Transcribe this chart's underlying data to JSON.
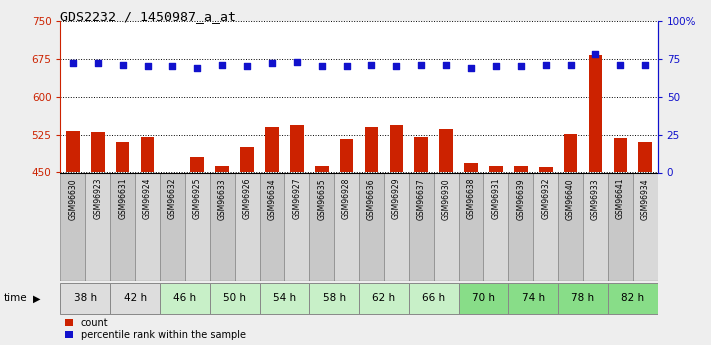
{
  "title": "GDS2232 / 1450987_a_at",
  "samples": [
    "GSM96630",
    "GSM96923",
    "GSM96631",
    "GSM96924",
    "GSM96632",
    "GSM96925",
    "GSM96633",
    "GSM96926",
    "GSM96634",
    "GSM96927",
    "GSM96635",
    "GSM96928",
    "GSM96636",
    "GSM96929",
    "GSM96637",
    "GSM96930",
    "GSM96638",
    "GSM96931",
    "GSM96639",
    "GSM96932",
    "GSM96640",
    "GSM96933",
    "GSM96641",
    "GSM96934"
  ],
  "bar_values": [
    533,
    530,
    510,
    520,
    450,
    480,
    462,
    500,
    540,
    543,
    462,
    517,
    540,
    543,
    520,
    535,
    468,
    462,
    462,
    460,
    527,
    683,
    518,
    510
  ],
  "percentile_values": [
    72,
    72,
    71,
    70,
    70,
    69,
    71,
    70,
    72,
    73,
    70,
    70,
    71,
    70,
    71,
    71,
    69,
    70,
    70,
    71,
    71,
    78,
    71,
    71
  ],
  "time_groups": [
    {
      "label": "38 h",
      "start": 0,
      "end": 1,
      "color": "#dddddd"
    },
    {
      "label": "42 h",
      "start": 2,
      "end": 3,
      "color": "#dddddd"
    },
    {
      "label": "46 h",
      "start": 4,
      "end": 5,
      "color": "#c8f0c8"
    },
    {
      "label": "50 h",
      "start": 6,
      "end": 7,
      "color": "#c8f0c8"
    },
    {
      "label": "54 h",
      "start": 8,
      "end": 9,
      "color": "#c8f0c8"
    },
    {
      "label": "58 h",
      "start": 10,
      "end": 11,
      "color": "#c8f0c8"
    },
    {
      "label": "62 h",
      "start": 12,
      "end": 13,
      "color": "#c8f0c8"
    },
    {
      "label": "66 h",
      "start": 14,
      "end": 15,
      "color": "#c8f0c8"
    },
    {
      "label": "70 h",
      "start": 16,
      "end": 17,
      "color": "#88dd88"
    },
    {
      "label": "74 h",
      "start": 18,
      "end": 19,
      "color": "#88dd88"
    },
    {
      "label": "78 h",
      "start": 20,
      "end": 21,
      "color": "#88dd88"
    },
    {
      "label": "82 h",
      "start": 22,
      "end": 23,
      "color": "#88dd88"
    }
  ],
  "sample_colors_even": "#c8c8c8",
  "sample_colors_odd": "#d8d8d8",
  "ylim_left": [
    450,
    750
  ],
  "ylim_right": [
    0,
    100
  ],
  "yticks_left": [
    450,
    525,
    600,
    675,
    750
  ],
  "yticks_right": [
    0,
    25,
    50,
    75,
    100
  ],
  "ytick_right_labels": [
    "0",
    "25",
    "50",
    "75",
    "100%"
  ],
  "bar_color": "#cc2200",
  "dot_color": "#1111cc",
  "bg_color": "#eeeeee",
  "plot_bg": "#ffffff",
  "left_axis_color": "#cc2200",
  "right_axis_color": "#1111cc",
  "grid_color": "black"
}
